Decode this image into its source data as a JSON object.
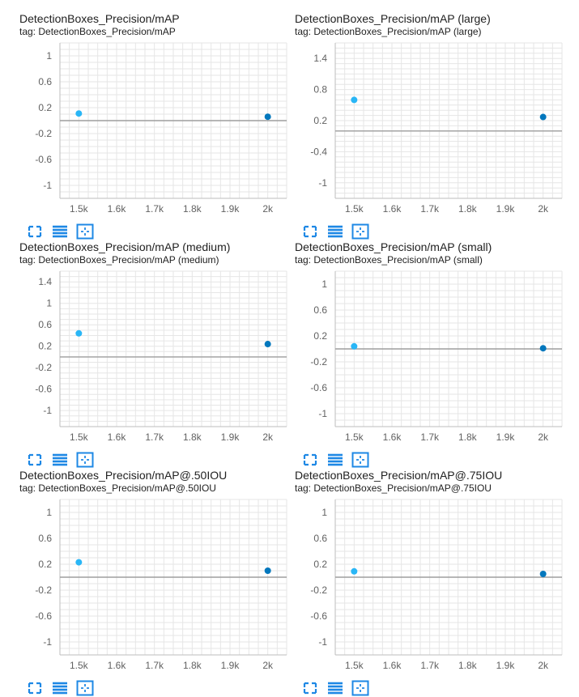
{
  "colors": {
    "point_first": "#29b6f6",
    "point_last": "#0277bd",
    "zero_line": "#9e9e9e",
    "grid": "#e6e6e6",
    "axis": "#bdbdbd",
    "icon": "#1e88e5"
  },
  "toolbar": {
    "icons": [
      "fullscreen-icon",
      "toggle-log-scale-icon",
      "fit-domain-icon"
    ]
  },
  "chart_data": [
    {
      "type": "scatter",
      "title": "DetectionBoxes_Precision/mAP",
      "tag": "tag: DetectionBoxes_Precision/mAP",
      "x_ticks": [
        1500,
        1600,
        1700,
        1800,
        1900,
        2000
      ],
      "x_tick_labels": [
        "1.5k",
        "1.6k",
        "1.7k",
        "1.8k",
        "1.9k",
        "2k"
      ],
      "xlim": [
        1450,
        2050
      ],
      "y_ticks": [
        1,
        0.6,
        0.2,
        -0.2,
        -0.6,
        -1
      ],
      "y_tick_labels": [
        "1",
        "0.6",
        "0.2",
        "-0.2",
        "-0.6",
        "-1"
      ],
      "ylim": [
        -1.2,
        1.2
      ],
      "zero_line": true,
      "points": [
        {
          "x": 1500,
          "y": 0.11
        },
        {
          "x": 2000,
          "y": 0.06
        }
      ]
    },
    {
      "type": "scatter",
      "title": "DetectionBoxes_Precision/mAP (large)",
      "tag": "tag: DetectionBoxes_Precision/mAP (large)",
      "x_ticks": [
        1500,
        1600,
        1700,
        1800,
        1900,
        2000
      ],
      "x_tick_labels": [
        "1.5k",
        "1.6k",
        "1.7k",
        "1.8k",
        "1.9k",
        "2k"
      ],
      "xlim": [
        1450,
        2050
      ],
      "y_ticks": [
        1.4,
        0.8,
        0.2,
        -0.4,
        -1
      ],
      "y_tick_labels": [
        "1.4",
        "0.8",
        "0.2",
        "-0.4",
        "-1"
      ],
      "ylim": [
        -1.3,
        1.7
      ],
      "zero_line": true,
      "points": [
        {
          "x": 1500,
          "y": 0.6
        },
        {
          "x": 2000,
          "y": 0.27
        }
      ]
    },
    {
      "type": "scatter",
      "title": "DetectionBoxes_Precision/mAP (medium)",
      "tag": "tag: DetectionBoxes_Precision/mAP (medium)",
      "x_ticks": [
        1500,
        1600,
        1700,
        1800,
        1900,
        2000
      ],
      "x_tick_labels": [
        "1.5k",
        "1.6k",
        "1.7k",
        "1.8k",
        "1.9k",
        "2k"
      ],
      "xlim": [
        1450,
        2050
      ],
      "y_ticks": [
        1.4,
        1,
        0.6,
        0.2,
        -0.2,
        -0.6,
        -1
      ],
      "y_tick_labels": [
        "1.4",
        "1",
        "0.6",
        "0.2",
        "-0.2",
        "-0.6",
        "-1"
      ],
      "ylim": [
        -1.3,
        1.6
      ],
      "zero_line": true,
      "points": [
        {
          "x": 1500,
          "y": 0.44
        },
        {
          "x": 2000,
          "y": 0.24
        }
      ]
    },
    {
      "type": "scatter",
      "title": "DetectionBoxes_Precision/mAP (small)",
      "tag": "tag: DetectionBoxes_Precision/mAP (small)",
      "x_ticks": [
        1500,
        1600,
        1700,
        1800,
        1900,
        2000
      ],
      "x_tick_labels": [
        "1.5k",
        "1.6k",
        "1.7k",
        "1.8k",
        "1.9k",
        "2k"
      ],
      "xlim": [
        1450,
        2050
      ],
      "y_ticks": [
        1,
        0.6,
        0.2,
        -0.2,
        -0.6,
        -1
      ],
      "y_tick_labels": [
        "1",
        "0.6",
        "0.2",
        "-0.2",
        "-0.6",
        "-1"
      ],
      "ylim": [
        -1.2,
        1.2
      ],
      "zero_line": true,
      "points": [
        {
          "x": 1500,
          "y": 0.04
        },
        {
          "x": 2000,
          "y": 0.01
        }
      ]
    },
    {
      "type": "scatter",
      "title": "DetectionBoxes_Precision/mAP@.50IOU",
      "tag": "tag: DetectionBoxes_Precision/mAP@.50IOU",
      "x_ticks": [
        1500,
        1600,
        1700,
        1800,
        1900,
        2000
      ],
      "x_tick_labels": [
        "1.5k",
        "1.6k",
        "1.7k",
        "1.8k",
        "1.9k",
        "2k"
      ],
      "xlim": [
        1450,
        2050
      ],
      "y_ticks": [
        1,
        0.6,
        0.2,
        -0.2,
        -0.6,
        -1
      ],
      "y_tick_labels": [
        "1",
        "0.6",
        "0.2",
        "-0.2",
        "-0.6",
        "-1"
      ],
      "ylim": [
        -1.2,
        1.2
      ],
      "zero_line": true,
      "points": [
        {
          "x": 1500,
          "y": 0.23
        },
        {
          "x": 2000,
          "y": 0.1
        }
      ]
    },
    {
      "type": "scatter",
      "title": "DetectionBoxes_Precision/mAP@.75IOU",
      "tag": "tag: DetectionBoxes_Precision/mAP@.75IOU",
      "x_ticks": [
        1500,
        1600,
        1700,
        1800,
        1900,
        2000
      ],
      "x_tick_labels": [
        "1.5k",
        "1.6k",
        "1.7k",
        "1.8k",
        "1.9k",
        "2k"
      ],
      "xlim": [
        1450,
        2050
      ],
      "y_ticks": [
        1,
        0.6,
        0.2,
        -0.2,
        -0.6,
        -1
      ],
      "y_tick_labels": [
        "1",
        "0.6",
        "0.2",
        "-0.2",
        "-0.6",
        "-1"
      ],
      "ylim": [
        -1.2,
        1.2
      ],
      "zero_line": true,
      "points": [
        {
          "x": 1500,
          "y": 0.09
        },
        {
          "x": 2000,
          "y": 0.05
        }
      ]
    }
  ]
}
